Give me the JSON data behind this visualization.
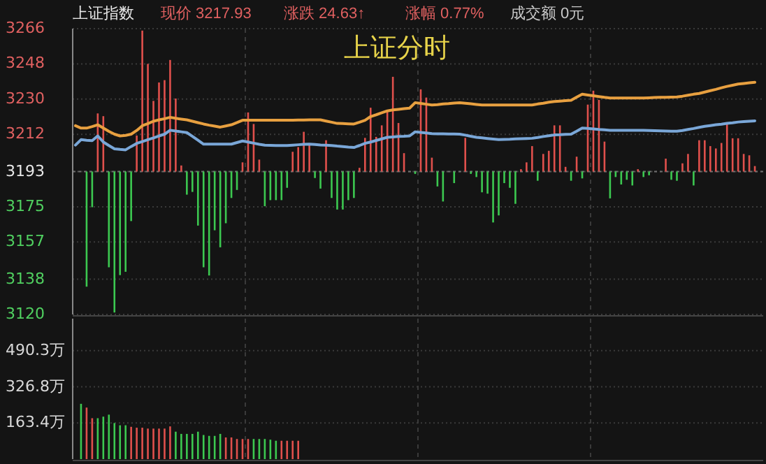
{
  "chart_data": [
    {
      "type": "line",
      "title": "上证分时",
      "annotations": [
        "上证指数",
        "现价 3217.93",
        "涨跌 24.63↑",
        "涨幅 0.77%",
        "成交额 0元"
      ],
      "categories": [
        null,
        null,
        null,
        null,
        null,
        null,
        null,
        null,
        null,
        null,
        null,
        null,
        null,
        null,
        null,
        null,
        null,
        null,
        null,
        null,
        null,
        null,
        null,
        null,
        null,
        null,
        null,
        null,
        null,
        null,
        null,
        null,
        null,
        null,
        null,
        null,
        null,
        null,
        null,
        null,
        null,
        null,
        null,
        null,
        null,
        null,
        null,
        null,
        null,
        null,
        null,
        null,
        null,
        null,
        null,
        null,
        null,
        null,
        null,
        null,
        null,
        null,
        null,
        null,
        null,
        null,
        null,
        null,
        null,
        null,
        null,
        null,
        null,
        null,
        null,
        null,
        null,
        null,
        null,
        null,
        null,
        null,
        null,
        null,
        null,
        null,
        null,
        null,
        null,
        null,
        null,
        null,
        null,
        null,
        null,
        null,
        null,
        null,
        null,
        null,
        null,
        null,
        null,
        null,
        null,
        null,
        null,
        null,
        null,
        null,
        null,
        null,
        null,
        null,
        null,
        null,
        null,
        null,
        null,
        null,
        null,
        null,
        null,
        null
      ],
      "ylim": [
        3120,
        3266
      ],
      "yticks": [
        3120,
        3138,
        3157,
        3175,
        3193,
        3212,
        3230,
        3248,
        3266
      ],
      "grid": true,
      "ref_lines": [
        {
          "axis": "y",
          "value": 3193
        }
      ],
      "series": [
        {
          "type": "bar",
          "base": [
            null,
            null,
            3193,
            3193,
            3193,
            3193,
            3193,
            3193,
            3193,
            3193,
            3193,
            3193,
            3193,
            3193,
            3193,
            3193,
            3193,
            3193,
            3193,
            3193,
            3193,
            3193,
            3193,
            3193,
            3193,
            3193,
            3193,
            3193,
            3193,
            3193,
            3193,
            3193,
            3193,
            3193,
            3193,
            3193,
            3193,
            3193,
            3193,
            3193,
            3193,
            3193,
            3193,
            3193,
            3193,
            3193,
            3193,
            3193,
            3193,
            3193,
            3193,
            3193,
            3193,
            3193,
            3193,
            3193,
            3193,
            3193,
            3193,
            3193,
            null,
            3193,
            3193,
            3193,
            3193,
            3193,
            3193,
            null,
            3193,
            null,
            3193,
            3193,
            3193,
            3193,
            3193,
            3193,
            3193,
            3193,
            3193,
            3193,
            3193,
            3193,
            3193,
            3193,
            3193,
            3193,
            3193,
            3193,
            3193,
            3193,
            3193,
            3193,
            3193,
            3193,
            3193,
            3193,
            3193,
            3193,
            3193,
            3193,
            3193,
            3193,
            3193,
            3193,
            null,
            null,
            3193,
            3193,
            3193,
            3193,
            3193,
            3193,
            3193,
            3193,
            3193,
            3193,
            3193,
            3193,
            3193,
            3193,
            3193,
            3193,
            3193,
            null
          ],
          "values": [
            null,
            null,
            -58.8,
            -18.2,
            29.7,
            28.3,
            -48.9,
            -72.0,
            -52.9,
            -51.2,
            -25.3,
            18.4,
            72,
            55.0,
            36.1,
            45.5,
            46.7,
            57,
            37.3,
            3.1,
            -11.8,
            -10.4,
            -27.6,
            -48.9,
            -53.1,
            -30.0,
            -38.7,
            -26.4,
            -13.5,
            -9.4,
            4.7,
            30.2,
            24.3,
            6.1,
            -17.7,
            -14.6,
            -14.6,
            -14.6,
            -8.3,
            10.1,
            12.5,
            20.3,
            13.7,
            -3.3,
            -8.7,
            16.0,
            -13.5,
            -19.4,
            -19.4,
            -14.6,
            -13.5,
            1.9,
            17.2,
            32.6,
            17.7,
            23.6,
            30.7,
            48.4,
            24.8,
            9.4,
            null,
            -1.2,
            42.0,
            37.8,
            7.1,
            -7.6,
            -15.3,
            null,
            -5.9,
            null,
            17.2,
            -1.2,
            -2.8,
            -10.6,
            -11.3,
            -26.0,
            -22.4,
            -5.9,
            -8.3,
            -16.5,
            1.2,
            4.7,
            13.0,
            -4.7,
            9.0,
            10.6,
            23.6,
            23.6,
            2.4,
            -4.7,
            7.6,
            -3.5,
            34.2,
            41.3,
            36.6,
            15.3,
            -13.7,
            -2.8,
            -6.6,
            -4.2,
            -7.1,
            1.2,
            -2.8,
            -1.9,
            null,
            null,
            6.6,
            -4.2,
            -4.7,
            4.2,
            9.0,
            -7.1,
            16.0,
            16.0,
            13.0,
            11.8,
            14.6,
            24.1,
            17.0,
            17.0,
            9.0,
            8.3,
            2.8,
            null
          ],
          "colors": [
            null,
            null,
            "#3cc850",
            "#3cc850",
            "#e0504c",
            "#e0504c",
            "#3cc850",
            "#3cc850",
            "#3cc850",
            "#3cc850",
            "#3cc850",
            "#e0504c",
            "#e0504c",
            "#e0504c",
            "#e0504c",
            "#e0504c",
            "#e0504c",
            "#e0504c",
            "#e0504c",
            "#e0504c",
            "#3cc850",
            "#3cc850",
            "#3cc850",
            "#3cc850",
            "#3cc850",
            "#3cc850",
            "#3cc850",
            "#3cc850",
            "#3cc850",
            "#3cc850",
            "#e0504c",
            "#e0504c",
            "#e0504c",
            "#e0504c",
            "#3cc850",
            "#3cc850",
            "#3cc850",
            "#3cc850",
            "#3cc850",
            "#e0504c",
            "#e0504c",
            "#e0504c",
            "#e0504c",
            "#3cc850",
            "#3cc850",
            "#e0504c",
            "#3cc850",
            "#3cc850",
            "#3cc850",
            "#3cc850",
            "#3cc850",
            "#e0504c",
            "#e0504c",
            "#e0504c",
            "#e0504c",
            "#e0504c",
            "#e0504c",
            "#e0504c",
            "#e0504c",
            "#e0504c",
            null,
            "#3cc850",
            "#e0504c",
            "#e0504c",
            "#e0504c",
            "#3cc850",
            "#3cc850",
            null,
            "#3cc850",
            null,
            "#e0504c",
            "#3cc850",
            "#3cc850",
            "#3cc850",
            "#3cc850",
            "#3cc850",
            "#3cc850",
            "#3cc850",
            "#3cc850",
            "#3cc850",
            "#e0504c",
            "#e0504c",
            "#e0504c",
            "#3cc850",
            "#e0504c",
            "#e0504c",
            "#e0504c",
            "#e0504c",
            "#e0504c",
            "#3cc850",
            "#e0504c",
            "#3cc850",
            "#e0504c",
            "#e0504c",
            "#e0504c",
            "#e0504c",
            "#3cc850",
            "#3cc850",
            "#3cc850",
            "#3cc850",
            "#3cc850",
            "#e0504c",
            "#3cc850",
            "#3cc850",
            null,
            null,
            "#e0504c",
            "#3cc850",
            "#3cc850",
            "#e0504c",
            "#e0504c",
            "#3cc850",
            "#e0504c",
            "#e0504c",
            "#e0504c",
            "#e0504c",
            "#e0504c",
            "#e0504c",
            "#e0504c",
            "#e0504c",
            "#e0504c",
            "#e0504c",
            "#e0504c",
            null
          ]
        },
        {
          "type": "line",
          "color": "#e8a040",
          "values": [
            3216.4,
            3215.2,
            3215.2,
            3216.0,
            3216.9,
            3215.2,
            3213.5,
            3212.1,
            3211.2,
            3211.5,
            3212.1,
            3214.0,
            3216.4,
            3217.5,
            3218.7,
            3219.4,
            3220.0,
            3220.7,
            3220.2,
            3219.8,
            3219.4,
            3218.7,
            3218.0,
            3217.3,
            3216.7,
            3216.2,
            3215.7,
            3216.3,
            3216.9,
            3218.0,
            3219.2,
            3219.2,
            3219.2,
            3219.2,
            3219.2,
            3219.2,
            3219.2,
            3219.2,
            3219.2,
            3219.2,
            3219.3,
            3219.3,
            3219.4,
            3219.4,
            3219.4,
            3218.8,
            3218.2,
            3217.6,
            3217.5,
            3217.4,
            3217.3,
            3218.2,
            3219.2,
            3221.1,
            3222.0,
            3223.0,
            3224.0,
            3224.5,
            3224.8,
            3225.1,
            3225.4,
            3228.2,
            3227.8,
            3227.4,
            3227.0,
            3227.2,
            3227.5,
            3227.7,
            3228.0,
            3228.2,
            3227.9,
            3227.6,
            3227.3,
            3227.0,
            3227.0,
            3227.0,
            3227.0,
            3227.0,
            3227.0,
            3227.0,
            3227.0,
            3227.0,
            3227.0,
            3227.5,
            3227.9,
            3228.4,
            3228.8,
            3229.0,
            3229.2,
            3229.4,
            3231.0,
            3232.5,
            3232.1,
            3231.7,
            3231.3,
            3230.9,
            3230.6,
            3230.6,
            3230.6,
            3230.6,
            3230.6,
            3230.6,
            3230.6,
            3230.7,
            3230.8,
            3230.9,
            3230.9,
            3231.0,
            3231.1,
            3231.5,
            3232.0,
            3232.5,
            3232.9,
            3233.6,
            3234.3,
            3235.0,
            3235.8,
            3236.5,
            3237.1,
            3237.7,
            3238.0,
            3238.3,
            3238.6,
            null
          ]
        },
        {
          "type": "line",
          "color": "#7aa7d8",
          "values": [
            3206.5,
            3209.3,
            3209.0,
            3208.8,
            3211.2,
            3208.1,
            3206.3,
            3204.6,
            3204.3,
            3204.1,
            3205.8,
            3207.4,
            3208.3,
            3209.3,
            3210.2,
            3211.2,
            3212.1,
            3214.1,
            3213.7,
            3213.3,
            3212.9,
            3211.0,
            3209.0,
            3207.0,
            3207.0,
            3207.0,
            3207.0,
            3207.0,
            3207.0,
            3207.8,
            3208.6,
            3208.1,
            3207.5,
            3206.9,
            3206.5,
            3206.4,
            3206.3,
            3206.3,
            3206.3,
            3206.5,
            3206.7,
            3206.9,
            3207.0,
            3206.8,
            3206.6,
            3206.5,
            3206.3,
            3206.0,
            3205.8,
            3205.5,
            3205.3,
            3206.3,
            3207.4,
            3208.1,
            3208.9,
            3209.7,
            3210.5,
            3210.7,
            3210.9,
            3211.0,
            3211.2,
            3213.3,
            3213.0,
            3212.7,
            3212.4,
            3212.3,
            3212.3,
            3212.2,
            3212.2,
            3212.1,
            3211.6,
            3211.0,
            3210.5,
            3210.2,
            3209.9,
            3209.6,
            3209.3,
            3209.4,
            3209.5,
            3209.7,
            3209.8,
            3209.9,
            3210.0,
            3210.4,
            3210.9,
            3211.3,
            3211.7,
            3211.8,
            3212.0,
            3212.1,
            3213.6,
            3215.2,
            3215.0,
            3214.8,
            3214.5,
            3214.3,
            3214.1,
            3214.1,
            3214.1,
            3214.1,
            3214.1,
            3214.1,
            3214.1,
            3214.0,
            3213.9,
            3213.8,
            3213.7,
            3213.6,
            3213.6,
            3214.0,
            3214.5,
            3215.0,
            3215.6,
            3216.1,
            3216.5,
            3216.9,
            3217.2,
            3217.6,
            3217.9,
            3218.3,
            3218.5,
            3218.7,
            3218.9,
            null
          ]
        }
      ]
    },
    {
      "type": "bar",
      "categories": [
        null,
        null,
        null,
        null,
        null,
        null,
        null,
        null,
        null,
        null,
        null,
        null,
        null,
        null,
        null,
        null,
        null,
        null,
        null,
        null,
        null,
        null,
        null,
        null,
        null,
        null,
        null,
        null,
        null,
        null,
        null,
        null,
        null,
        null,
        null,
        null,
        null,
        null,
        null,
        null,
        null,
        null,
        null,
        null,
        null,
        null,
        null,
        null,
        null,
        null,
        null,
        null,
        null,
        null,
        null,
        null,
        null,
        null,
        null,
        null,
        null,
        null,
        null,
        null,
        null,
        null,
        null,
        null,
        null,
        null,
        null,
        null,
        null,
        null,
        null,
        null,
        null,
        null,
        null,
        null,
        null,
        null,
        null,
        null,
        null,
        null,
        null,
        null,
        null,
        null,
        null,
        null,
        null,
        null,
        null,
        null,
        null,
        null,
        null,
        null,
        null,
        null,
        null,
        null,
        null,
        null,
        null,
        null,
        null,
        null,
        null,
        null,
        null,
        null,
        null,
        null,
        null,
        null,
        null,
        null,
        null,
        null,
        null,
        null
      ],
      "ylim": [
        0,
        635
      ],
      "yticks": [
        {
          "value": 163.4,
          "label": "163.4万"
        },
        {
          "value": 326.8,
          "label": "326.8万"
        },
        {
          "value": 490.3,
          "label": "490.3万"
        }
      ],
      "grid": true,
      "values": [
        null,
        250,
        233,
        185,
        185,
        192,
        201,
        163,
        153,
        153,
        146,
        142,
        142,
        138,
        138,
        138,
        138,
        148,
        124,
        114,
        114,
        114,
        124,
        109,
        105,
        105,
        114,
        98,
        98,
        91,
        91,
        91,
        91,
        91,
        91,
        88,
        83,
        83,
        83,
        83,
        83,
        null,
        null,
        null,
        null,
        null,
        null,
        null,
        null,
        null,
        null,
        null,
        null,
        null,
        null,
        null,
        null,
        null,
        null,
        null,
        null,
        null,
        null,
        null,
        null,
        null,
        null,
        null,
        null,
        null,
        null,
        null,
        null,
        null,
        null,
        null,
        null,
        null,
        null,
        null,
        null,
        null,
        null,
        null,
        null,
        null,
        null,
        null,
        null,
        null,
        null,
        null,
        null,
        null,
        null,
        null,
        null,
        null,
        null,
        null,
        null,
        null,
        null,
        null,
        null,
        null,
        null,
        null,
        null,
        null,
        null,
        null,
        null,
        null,
        null,
        null,
        null,
        null,
        null,
        null,
        null,
        null,
        null,
        null
      ],
      "colors": [
        null,
        "#3cc850",
        "#e0504c",
        "#e0504c",
        "#3cc850",
        "#3cc850",
        "#3cc850",
        "#3cc850",
        "#3cc850",
        "#3cc850",
        "#e0504c",
        "#e0504c",
        "#e0504c",
        "#e0504c",
        "#e0504c",
        "#e0504c",
        "#e0504c",
        "#e0504c",
        "#3cc850",
        "#3cc850",
        "#3cc850",
        "#3cc850",
        "#3cc850",
        "#3cc850",
        "#3cc850",
        "#3cc850",
        "#3cc850",
        "#e0504c",
        "#e0504c",
        "#e0504c",
        "#e0504c",
        "#e0504c",
        "#3cc850",
        "#3cc850",
        "#3cc850",
        "#3cc850",
        "#3cc850",
        "#e0504c",
        "#e0504c",
        "#e0504c",
        "#e0504c",
        null,
        null,
        null,
        null,
        null,
        null,
        null,
        null,
        null,
        null,
        null,
        null,
        null,
        null,
        null,
        null,
        null,
        null,
        null,
        null,
        null,
        null,
        null,
        null,
        null,
        null,
        null,
        null,
        null,
        null,
        null,
        null,
        null,
        null,
        null,
        null,
        null,
        null,
        null,
        null,
        null,
        null,
        null,
        null,
        null,
        null,
        null,
        null,
        null,
        null,
        null,
        null,
        null,
        null,
        null,
        null,
        null,
        null,
        null,
        null,
        null,
        null,
        null,
        null,
        null,
        null,
        null,
        null,
        null,
        null,
        null,
        null,
        null,
        null,
        null,
        null,
        null,
        null,
        null,
        null,
        null,
        null,
        null
      ]
    }
  ]
}
